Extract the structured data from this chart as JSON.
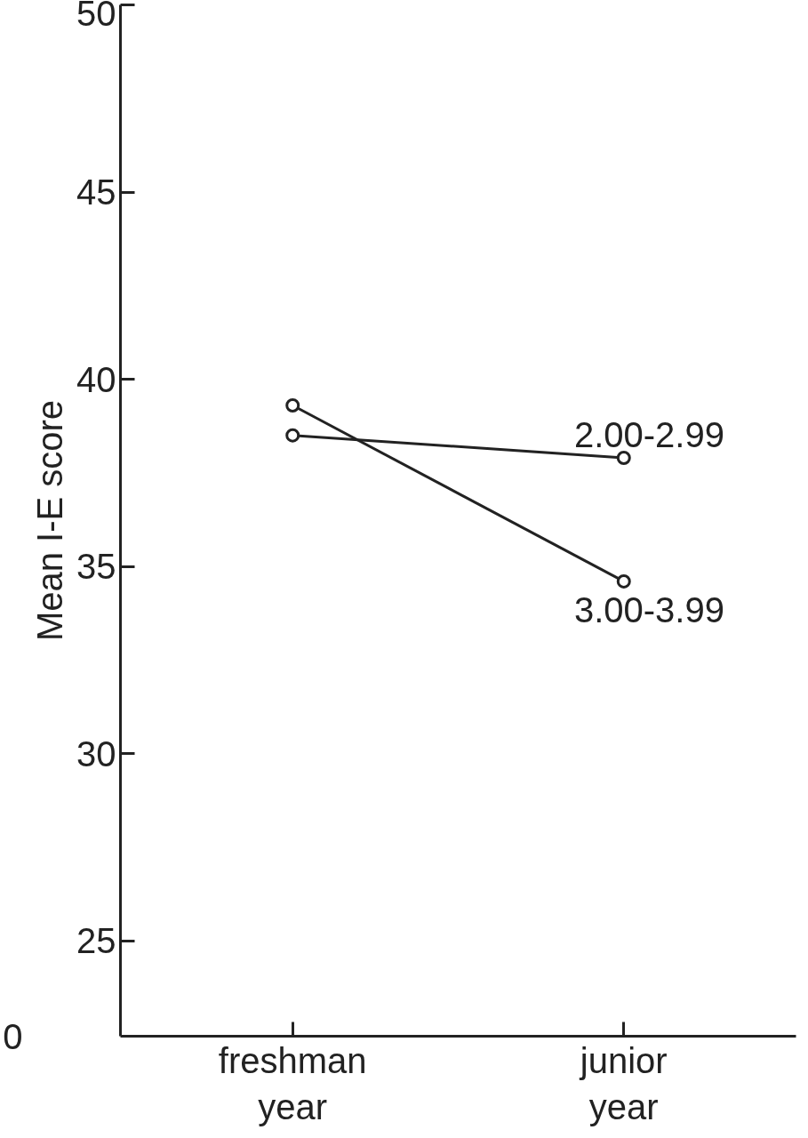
{
  "chart_data": {
    "type": "line",
    "ylabel": "Mean I-E score",
    "categories": [
      "freshman\nyear",
      "junior\nyear"
    ],
    "series": [
      {
        "name": "2.00-2.99",
        "color": "#222222",
        "values": [
          38.5,
          37.9
        ]
      },
      {
        "name": "3.00-3.99",
        "color": "#222222",
        "values": [
          39.3,
          34.6
        ]
      }
    ],
    "ylim": [
      22.45,
      50
    ],
    "yticks": [
      25,
      30,
      35,
      40,
      45,
      50
    ],
    "annotations": [
      "0"
    ],
    "marker": "circle",
    "line_style": "solid",
    "grid": false,
    "legend": false
  }
}
